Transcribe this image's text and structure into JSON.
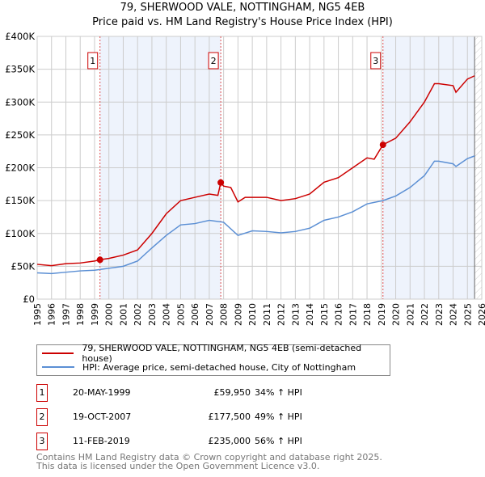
{
  "title": "79, SHERWOOD VALE, NOTTINGHAM, NG5 4EB",
  "subtitle": "Price paid vs. HM Land Registry's House Price Index (HPI)",
  "chart_data": {
    "type": "line",
    "xlim": [
      1995,
      2026
    ],
    "ylim": [
      0,
      400000
    ],
    "y_ticks": [
      {
        "v": 0,
        "label": "£0"
      },
      {
        "v": 50000,
        "label": "£50K"
      },
      {
        "v": 100000,
        "label": "£100K"
      },
      {
        "v": 150000,
        "label": "£150K"
      },
      {
        "v": 200000,
        "label": "£200K"
      },
      {
        "v": 250000,
        "label": "£250K"
      },
      {
        "v": 300000,
        "label": "£300K"
      },
      {
        "v": 350000,
        "label": "£350K"
      },
      {
        "v": 400000,
        "label": "£400K"
      }
    ],
    "x_ticks": [
      "1995",
      "1996",
      "1997",
      "1998",
      "1999",
      "2000",
      "2001",
      "2002",
      "2003",
      "2004",
      "2005",
      "2006",
      "2007",
      "2008",
      "2009",
      "2010",
      "2011",
      "2012",
      "2013",
      "2014",
      "2015",
      "2016",
      "2017",
      "2018",
      "2019",
      "2020",
      "2021",
      "2022",
      "2023",
      "2024",
      "2025",
      "2026"
    ],
    "grid": true,
    "forecast_hatch_from": 2025.5,
    "shaded_ranges": [
      [
        1999.38,
        2007.8
      ],
      [
        2019.11,
        2025.5
      ]
    ],
    "series": [
      {
        "name": "79, SHERWOOD VALE, NOTTINGHAM, NG5 4EB (semi-detached house)",
        "color": "#cc0000",
        "x": [
          1995,
          1996,
          1997,
          1998,
          1999,
          1999.38,
          2000,
          2001,
          2002,
          2003,
          2004,
          2005,
          2006,
          2007,
          2007.6,
          2007.8,
          2008,
          2008.5,
          2009,
          2009.5,
          2010,
          2011,
          2012,
          2013,
          2014,
          2015,
          2016,
          2017,
          2018,
          2018.5,
          2019.11,
          2020,
          2021,
          2022,
          2022.7,
          2023,
          2024,
          2024.2,
          2025,
          2025.5
        ],
        "y": [
          53000,
          51000,
          54000,
          55000,
          58000,
          59950,
          62000,
          67000,
          75000,
          100000,
          130000,
          150000,
          155000,
          160000,
          158000,
          177500,
          172000,
          170000,
          148000,
          155000,
          155000,
          155000,
          150000,
          153000,
          160000,
          178000,
          185000,
          200000,
          215000,
          213000,
          235000,
          245000,
          270000,
          300000,
          328000,
          328000,
          325000,
          315000,
          335000,
          340000
        ]
      },
      {
        "name": "HPI: Average price, semi-detached house, City of Nottingham",
        "color": "#5b8fd4",
        "x": [
          1995,
          1996,
          1997,
          1998,
          1999,
          2000,
          2001,
          2002,
          2003,
          2004,
          2005,
          2006,
          2007,
          2008,
          2009,
          2010,
          2011,
          2012,
          2013,
          2014,
          2015,
          2016,
          2017,
          2018,
          2019.11,
          2020,
          2021,
          2022,
          2022.7,
          2023,
          2024,
          2024.2,
          2025,
          2025.5
        ],
        "y": [
          40000,
          39000,
          41000,
          43000,
          44000,
          47000,
          50000,
          58000,
          78000,
          97000,
          113000,
          115000,
          120000,
          117000,
          97000,
          104000,
          103000,
          101000,
          103000,
          108000,
          120000,
          125000,
          133000,
          145000,
          150000,
          157000,
          170000,
          188000,
          210000,
          210000,
          206000,
          202000,
          214000,
          218000
        ]
      }
    ],
    "sales": [
      {
        "label": "1",
        "x": 1999.38,
        "y": 59950
      },
      {
        "label": "2",
        "x": 2007.8,
        "y": 177500
      },
      {
        "label": "3",
        "x": 2019.11,
        "y": 235000
      }
    ]
  },
  "legend": {
    "red": "79, SHERWOOD VALE, NOTTINGHAM, NG5 4EB (semi-detached house)",
    "blue": "HPI: Average price, semi-detached house, City of Nottingham"
  },
  "transactions": [
    {
      "num": "1",
      "date": "20-MAY-1999",
      "price": "£59,950",
      "hpi": "34% ↑ HPI"
    },
    {
      "num": "2",
      "date": "19-OCT-2007",
      "price": "£177,500",
      "hpi": "49% ↑ HPI"
    },
    {
      "num": "3",
      "date": "11-FEB-2019",
      "price": "£235,000",
      "hpi": "56% ↑ HPI"
    }
  ],
  "footer": {
    "line1": "Contains HM Land Registry data © Crown copyright and database right 2025.",
    "line2": "This data is licensed under the Open Government Licence v3.0."
  }
}
